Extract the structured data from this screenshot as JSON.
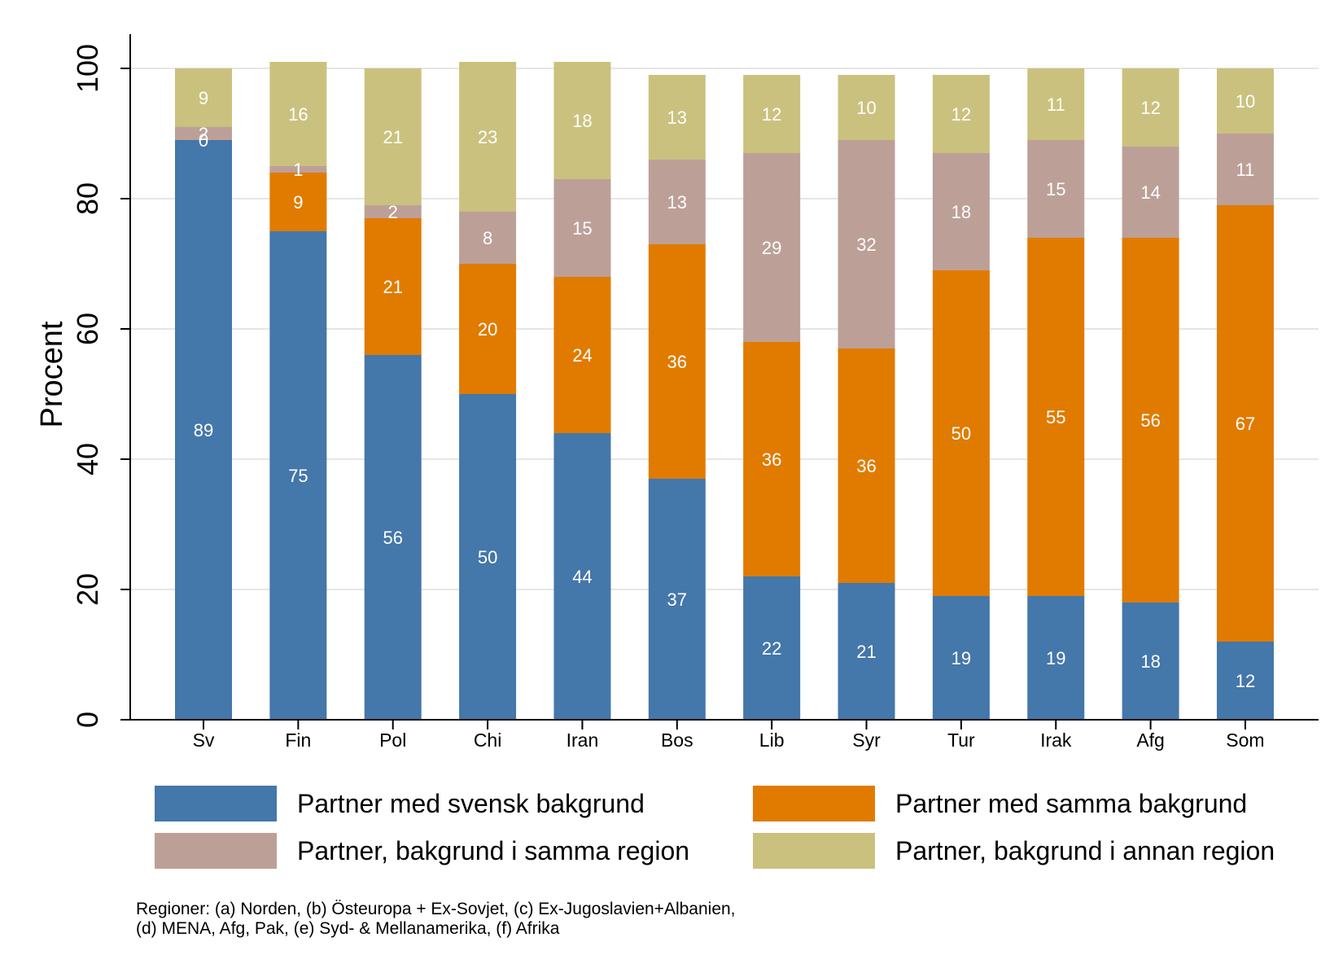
{
  "chart_data": {
    "type": "bar",
    "stacked": true,
    "categories": [
      "Sv",
      "Fin",
      "Pol",
      "Chi",
      "Iran",
      "Bos",
      "Lib",
      "Syr",
      "Tur",
      "Irak",
      "Afg",
      "Som"
    ],
    "ylabel": "Procent",
    "ylim": [
      0,
      100
    ],
    "yticks": [
      0,
      20,
      40,
      60,
      80,
      100
    ],
    "grid": true,
    "legend_position": "bottom",
    "series": [
      {
        "name": "Partner med svensk bakgrund",
        "color": "#4477aa",
        "values": [
          89,
          75,
          56,
          50,
          44,
          37,
          22,
          21,
          19,
          19,
          18,
          12
        ]
      },
      {
        "name": "Partner med samma bakgrund",
        "color": "#e07b00",
        "values": [
          0,
          9,
          21,
          20,
          24,
          36,
          36,
          36,
          50,
          55,
          56,
          67
        ]
      },
      {
        "name": "Partner, bakgrund i samma region",
        "color": "#bca098",
        "values": [
          2,
          1,
          2,
          8,
          15,
          13,
          29,
          32,
          18,
          15,
          14,
          11
        ]
      },
      {
        "name": "Partner, bakgrund i annan region",
        "color": "#cbc17e",
        "values": [
          9,
          16,
          21,
          23,
          18,
          13,
          12,
          10,
          12,
          11,
          12,
          10
        ]
      }
    ],
    "note": [
      "Regioner: (a) Norden, (b) Östeuropa + Ex-Sovjet, (c) Ex-Jugoslavien+Albanien,",
      "(d) MENA, Afg, Pak, (e) Syd- & Mellanamerika, (f) Afrika"
    ]
  }
}
